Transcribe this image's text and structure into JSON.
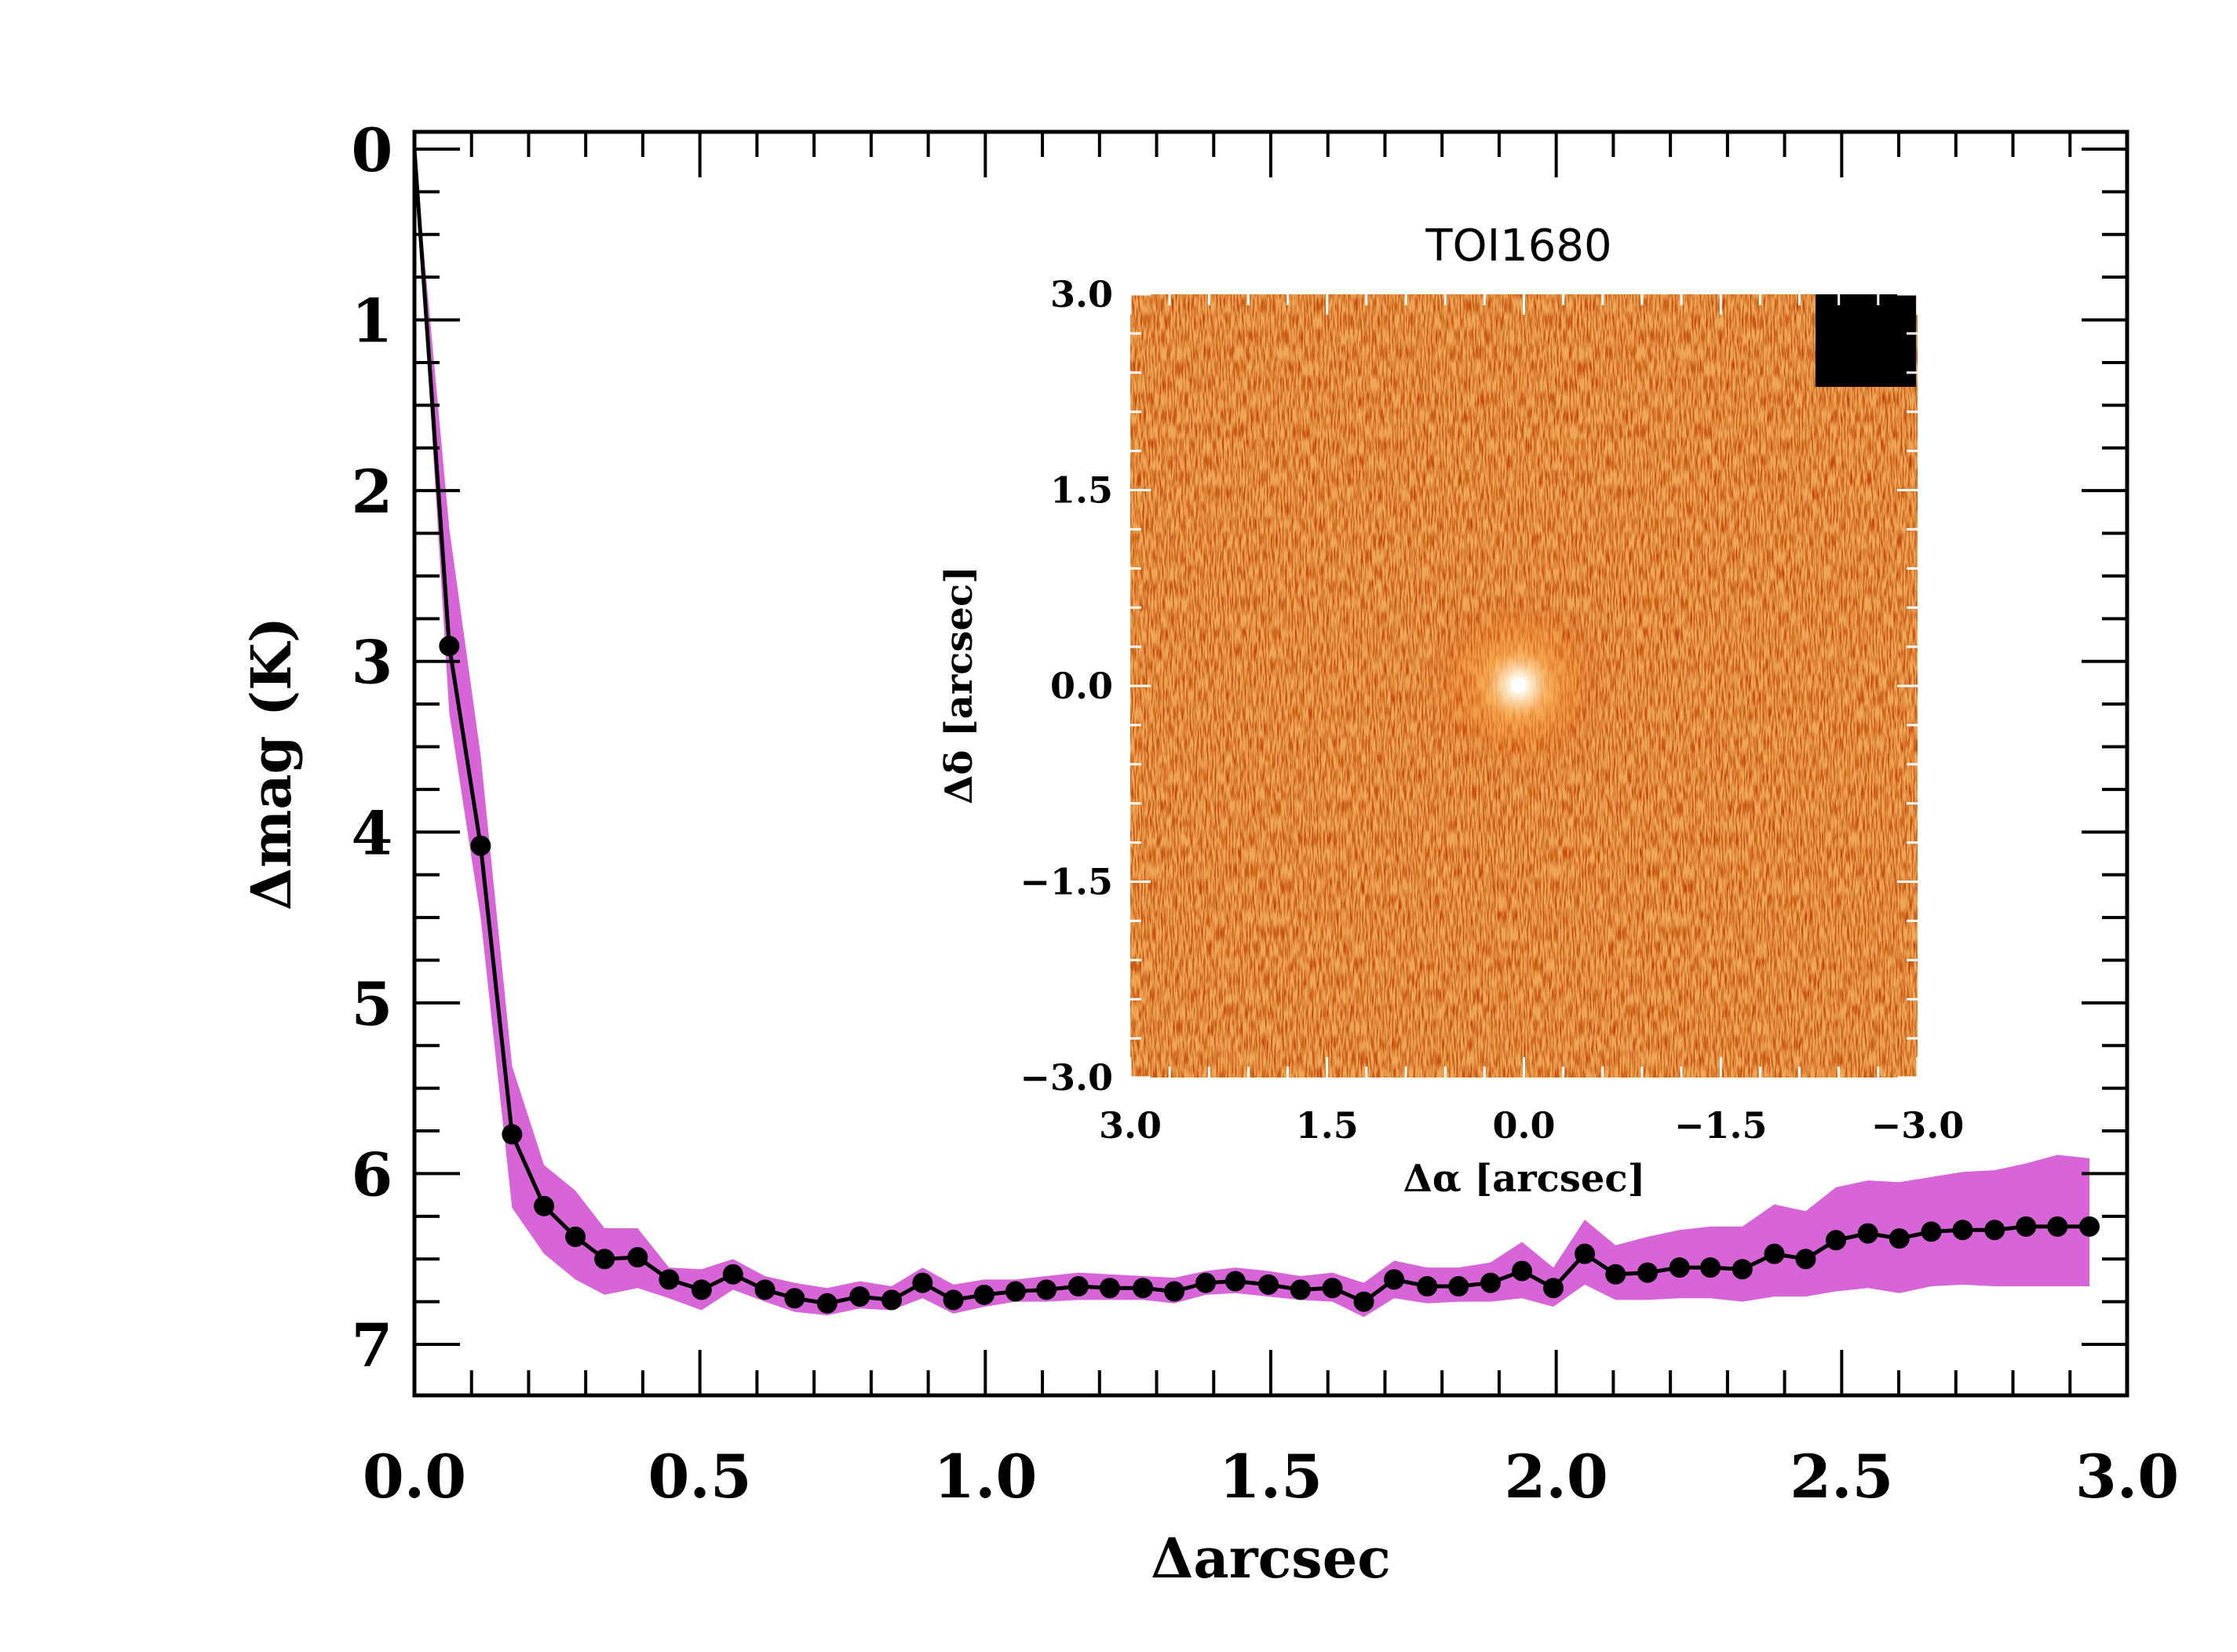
{
  "chart_data": [
    {
      "type": "line",
      "title": "",
      "xlabel": "Δarcsec",
      "ylabel": "Δmag (K)",
      "xlim": [
        0.0,
        3.0
      ],
      "ylim": [
        7,
        0
      ],
      "y_axis_inverted": true,
      "x_tick_labels": [
        "0.0",
        "0.5",
        "1.0",
        "1.5",
        "2.0",
        "2.5",
        "3.0"
      ],
      "y_tick_labels": [
        "0",
        "1",
        "2",
        "3",
        "4",
        "5",
        "6",
        "7"
      ],
      "grid": false,
      "line_color": "#000000",
      "band_color": "#d765d7",
      "series": [
        {
          "x": [
            0.0,
            0.061,
            0.116,
            0.171,
            0.227,
            0.282,
            0.333,
            0.391,
            0.446,
            0.503,
            0.558,
            0.614,
            0.666,
            0.723,
            0.78,
            0.836,
            0.89,
            0.944,
            0.998,
            1.053,
            1.107,
            1.163,
            1.218,
            1.276,
            1.331,
            1.386,
            1.438,
            1.496,
            1.552,
            1.608,
            1.663,
            1.716,
            1.774,
            1.829,
            1.885,
            1.94,
            1.995,
            2.05,
            2.104,
            2.16,
            2.216,
            2.27,
            2.326,
            2.382,
            2.437,
            2.49,
            2.546,
            2.601,
            2.657,
            2.712,
            2.768,
            2.823,
            2.878,
            2.934
          ],
          "y": [
            0.0,
            2.91,
            4.08,
            5.77,
            6.19,
            6.37,
            6.5,
            6.49,
            6.62,
            6.68,
            6.59,
            6.68,
            6.73,
            6.76,
            6.72,
            6.74,
            6.64,
            6.74,
            6.71,
            6.69,
            6.68,
            6.66,
            6.67,
            6.67,
            6.69,
            6.64,
            6.63,
            6.65,
            6.68,
            6.67,
            6.75,
            6.62,
            6.66,
            6.66,
            6.64,
            6.57,
            6.67,
            6.47,
            6.59,
            6.58,
            6.55,
            6.55,
            6.56,
            6.47,
            6.5,
            6.39,
            6.35,
            6.38,
            6.34,
            6.33,
            6.33,
            6.31,
            6.31,
            6.31
          ],
          "y_upper": [
            0.0,
            2.22,
            3.55,
            5.37,
            5.95,
            6.1,
            6.32,
            6.32,
            6.55,
            6.56,
            6.5,
            6.6,
            6.64,
            6.67,
            6.63,
            6.66,
            6.55,
            6.65,
            6.62,
            6.62,
            6.6,
            6.58,
            6.59,
            6.6,
            6.61,
            6.57,
            6.55,
            6.57,
            6.6,
            6.58,
            6.64,
            6.51,
            6.55,
            6.55,
            6.52,
            6.4,
            6.55,
            6.27,
            6.42,
            6.37,
            6.33,
            6.31,
            6.31,
            6.18,
            6.22,
            6.08,
            6.04,
            6.05,
            6.02,
            5.99,
            5.98,
            5.94,
            5.89,
            5.91
          ],
          "y_lower": [
            0.0,
            3.3,
            4.5,
            6.2,
            6.47,
            6.62,
            6.71,
            6.67,
            6.73,
            6.8,
            6.68,
            6.75,
            6.81,
            6.83,
            6.79,
            6.8,
            6.73,
            6.82,
            6.78,
            6.75,
            6.75,
            6.74,
            6.74,
            6.74,
            6.76,
            6.71,
            6.7,
            6.72,
            6.74,
            6.75,
            6.84,
            6.73,
            6.76,
            6.75,
            6.75,
            6.73,
            6.78,
            6.65,
            6.74,
            6.74,
            6.73,
            6.73,
            6.75,
            6.72,
            6.72,
            6.69,
            6.67,
            6.7,
            6.66,
            6.65,
            6.66,
            6.66,
            6.66,
            6.66
          ]
        }
      ]
    },
    {
      "type": "heatmap",
      "title": "TOI1680",
      "xlabel": "Δα [arcsec]",
      "ylabel": "Δδ [arcsec]",
      "xlim": [
        3.0,
        -3.0
      ],
      "ylim": [
        -3.0,
        3.0
      ],
      "x_tick_labels": [
        "3.0",
        "1.5",
        "0.0",
        "−1.5",
        "−3.0"
      ],
      "y_tick_labels": [
        "3.0",
        "1.5",
        "0.0",
        "−1.5",
        "−3.0"
      ],
      "colormap": "red-orange (hot)",
      "source_position": [
        0.0,
        0.0
      ],
      "masked_corner": "top-right",
      "colors": {
        "background": "#c2400b",
        "speckle_dark": "#9a2602",
        "speckle_light": "#e87220",
        "peak": "#fff7e8",
        "mask": "#000000"
      }
    }
  ]
}
